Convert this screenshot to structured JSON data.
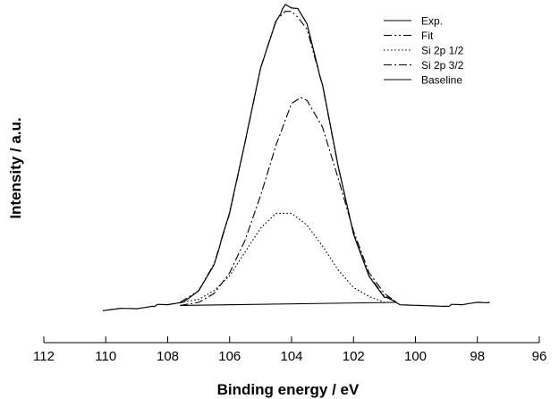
{
  "chart_data": {
    "type": "line",
    "title": "",
    "xlabel": "Binding energy / eV",
    "ylabel": "Intensity / a.u.",
    "xlim": [
      112,
      96
    ],
    "x_reversed": true,
    "ylim": [
      0,
      1.0
    ],
    "y_ticks_shown": false,
    "x_ticks": [
      112,
      110,
      108,
      106,
      104,
      102,
      100,
      98,
      96
    ],
    "grid": false,
    "legend_position": "top-right",
    "legend": [
      "Exp.",
      "Fit",
      "Si 2p 1/2",
      "Si 2p 3/2",
      "Baseline"
    ],
    "peaks": [
      {
        "name": "Si 2p 3/2",
        "center_eV": 103.7,
        "height": 0.72,
        "fwhm_eV": 2.2
      },
      {
        "name": "Si 2p 1/2",
        "center_eV": 104.3,
        "height": 0.33,
        "fwhm_eV": 2.2
      }
    ],
    "series": [
      {
        "name": "Exp.",
        "style": "solid",
        "x": [
          110.1,
          109.5,
          109.0,
          108.5,
          108.0,
          107.5,
          107.0,
          106.5,
          106.0,
          105.5,
          105.0,
          104.5,
          104.2,
          104.0,
          103.8,
          103.5,
          103.0,
          102.5,
          102.0,
          101.5,
          101.0,
          100.5,
          100.0,
          99.5,
          99.0,
          98.5,
          98.0,
          97.6
        ],
        "y": [
          0.0,
          0.01,
          0.01,
          0.02,
          0.02,
          0.03,
          0.07,
          0.16,
          0.33,
          0.57,
          0.82,
          0.98,
          1.03,
          1.02,
          1.02,
          0.97,
          0.76,
          0.49,
          0.26,
          0.12,
          0.05,
          0.02,
          0.02,
          0.02,
          0.02,
          0.02,
          0.03,
          0.03
        ]
      },
      {
        "name": "Fit",
        "style": "dash-dot-dot",
        "x": [
          107.6,
          107.0,
          106.5,
          106.0,
          105.5,
          105.0,
          104.5,
          104.2,
          104.0,
          103.8,
          103.5,
          103.0,
          102.5,
          102.0,
          101.5,
          101.0,
          100.6
        ],
        "y": [
          0.03,
          0.07,
          0.16,
          0.33,
          0.57,
          0.82,
          0.98,
          1.01,
          1.01,
          0.99,
          0.95,
          0.76,
          0.49,
          0.26,
          0.12,
          0.05,
          0.03
        ]
      },
      {
        "name": "Si 2p 1/2",
        "style": "dotted",
        "x": [
          107.6,
          107.0,
          106.5,
          106.0,
          105.5,
          105.0,
          104.5,
          104.3,
          104.0,
          103.5,
          103.0,
          102.5,
          102.0,
          101.5,
          101.0,
          100.6
        ],
        "y": [
          0.03,
          0.04,
          0.07,
          0.12,
          0.2,
          0.28,
          0.33,
          0.33,
          0.33,
          0.29,
          0.22,
          0.14,
          0.08,
          0.05,
          0.03,
          0.03
        ]
      },
      {
        "name": "Si 2p 3/2",
        "style": "dash-dot",
        "x": [
          107.6,
          107.0,
          106.5,
          106.0,
          105.5,
          105.0,
          104.5,
          104.0,
          103.7,
          103.5,
          103.0,
          102.5,
          102.0,
          101.5,
          101.0,
          100.6
        ],
        "y": [
          0.02,
          0.03,
          0.06,
          0.13,
          0.24,
          0.39,
          0.56,
          0.7,
          0.72,
          0.71,
          0.62,
          0.45,
          0.27,
          0.13,
          0.06,
          0.03
        ]
      },
      {
        "name": "Baseline",
        "style": "solid",
        "x": [
          107.6,
          100.6
        ],
        "y": [
          0.02,
          0.03
        ]
      }
    ]
  }
}
